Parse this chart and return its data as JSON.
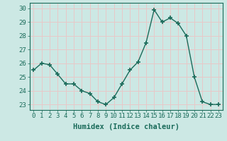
{
  "x": [
    0,
    1,
    2,
    3,
    4,
    5,
    6,
    7,
    8,
    9,
    10,
    11,
    12,
    13,
    14,
    15,
    16,
    17,
    18,
    19,
    20,
    21,
    22,
    23
  ],
  "y": [
    25.5,
    26.0,
    25.9,
    25.2,
    24.5,
    24.5,
    24.0,
    23.8,
    23.2,
    23.0,
    23.5,
    24.5,
    25.5,
    26.1,
    27.5,
    29.9,
    29.0,
    29.3,
    28.9,
    28.0,
    25.0,
    23.2,
    23.0,
    23.0
  ],
  "line_color": "#1a6b5a",
  "marker": "+",
  "marker_size": 5,
  "bg_color": "#cce8e4",
  "grid_color": "#e8c8c8",
  "xlabel": "Humidex (Indice chaleur)",
  "ylabel_ticks": [
    23,
    24,
    25,
    26,
    27,
    28,
    29,
    30
  ],
  "xlim": [
    -0.5,
    23.5
  ],
  "ylim": [
    22.6,
    30.4
  ],
  "xtick_labels": [
    "0",
    "1",
    "2",
    "3",
    "4",
    "5",
    "6",
    "7",
    "8",
    "9",
    "10",
    "11",
    "12",
    "13",
    "14",
    "15",
    "16",
    "17",
    "18",
    "19",
    "20",
    "21",
    "22",
    "23"
  ],
  "label_fontsize": 7.5,
  "tick_fontsize": 6.5
}
